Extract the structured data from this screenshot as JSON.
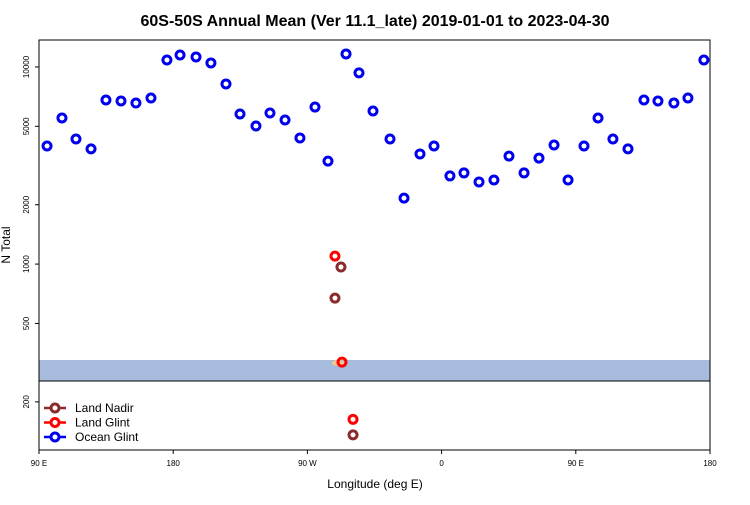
{
  "chart_data": {
    "type": "scatter",
    "title": "60S-50S Annual Mean (Ver 11.1_late)   2019-01-01 to 2023-04-30",
    "x_label": "Longitude (deg E)",
    "y_label": "N Total",
    "xlim": [
      90,
      540
    ],
    "xticks": [
      {
        "value": 90,
        "label": "90 E"
      },
      180,
      {
        "value": 270,
        "label": "90 W"
      },
      {
        "value": 360,
        "label": "0"
      },
      {
        "value": 450,
        "label": "90 E"
      },
      {
        "value": 540,
        "label": "180"
      }
    ],
    "ylim": [
      114,
      13700
    ],
    "y_scale": "log",
    "yticks": [
      200,
      500,
      1000,
      2000,
      5000,
      10000
    ],
    "legend": "bottom-left",
    "series": [
      {
        "name": "Land Nadir",
        "color": "#8b2a2a",
        "x": [
          292.5,
          288.5,
          300.6
        ],
        "values": [
          966,
          672,
          136
        ]
      },
      {
        "name": "Land Glint",
        "color": "#ff0000",
        "x": [
          288.5,
          293.2,
          300.6
        ],
        "values": [
          1098,
          318,
          163
        ]
      },
      {
        "name": "Ocean Glint",
        "color": "#0000ee",
        "x": [
          95.4,
          105.4,
          114.8,
          124.9,
          134.9,
          145.0,
          155.0,
          165.1,
          175.8,
          184.6,
          195.3,
          205.3,
          215.4,
          224.8,
          235.5,
          244.9,
          255.0,
          265.0,
          275.1,
          283.8,
          295.9,
          304.6,
          314.0,
          325.4,
          334.8,
          345.5,
          354.9,
          365.6,
          375.0,
          385.1,
          395.1,
          405.2,
          415.3,
          425.3,
          435.4,
          444.8,
          455.5,
          464.9,
          474.9,
          485.0,
          495.7,
          505.1,
          515.8,
          525.2,
          535.9
        ],
        "values": [
          3970,
          5510,
          4310,
          3840,
          6800,
          6720,
          6560,
          6960,
          10850,
          11500,
          11240,
          10480,
          8200,
          5770,
          5020,
          5840,
          5380,
          4360,
          6260,
          3330,
          11640,
          9330,
          5980,
          4310,
          2160,
          3620,
          3970,
          2800,
          2900,
          2610,
          2670,
          3530,
          2900,
          3450,
          4020,
          2670,
          3970,
          5510,
          4310,
          3840,
          6800,
          6720,
          6560,
          6960,
          10850
        ]
      }
    ]
  }
}
